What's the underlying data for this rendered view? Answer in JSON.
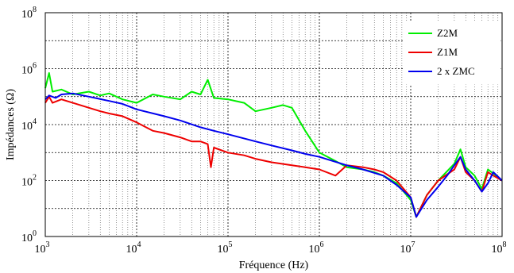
{
  "chart_data": {
    "type": "line",
    "title": "",
    "xlabel": "Fréquence (Hz)",
    "ylabel": "Impédances (Ω)",
    "x_scale": "log",
    "y_scale": "log",
    "xlim": [
      1000,
      100000000
    ],
    "ylim": [
      1,
      100000000
    ],
    "grid": true,
    "legend_position": "top-right",
    "x_ticks": [
      {
        "base": "10",
        "exp": "3",
        "value": 1000
      },
      {
        "base": "10",
        "exp": "4",
        "value": 10000
      },
      {
        "base": "10",
        "exp": "5",
        "value": 100000
      },
      {
        "base": "10",
        "exp": "6",
        "value": 1000000
      },
      {
        "base": "10",
        "exp": "7",
        "value": 10000000
      },
      {
        "base": "10",
        "exp": "8",
        "value": 100000000
      }
    ],
    "y_ticks": [
      {
        "base": "10",
        "exp": "0",
        "value": 1
      },
      {
        "base": "10",
        "exp": "2",
        "value": 100
      },
      {
        "base": "10",
        "exp": "4",
        "value": 10000
      },
      {
        "base": "10",
        "exp": "6",
        "value": 1000000
      },
      {
        "base": "10",
        "exp": "8",
        "value": 100000000
      }
    ],
    "series": [
      {
        "name": "Z2M",
        "color": "#00ee00",
        "x": [
          1000,
          1100,
          1200,
          1500,
          2000,
          3000,
          4000,
          5000,
          7000,
          10000,
          15000,
          20000,
          30000,
          40000,
          50000,
          60000,
          70000,
          100000,
          150000,
          200000,
          300000,
          400000,
          500000,
          700000,
          1000000,
          1500000,
          2000000,
          3000000,
          4000000,
          5000000,
          7000000,
          10000000,
          11500000,
          15000000,
          20000000,
          30000000,
          35000000,
          40000000,
          50000000,
          60000000,
          70000000,
          80000000,
          100000000
        ],
        "y": [
          200000,
          700000,
          150000,
          180000,
          120000,
          150000,
          110000,
          130000,
          80000,
          60000,
          120000,
          100000,
          80000,
          150000,
          120000,
          400000,
          90000,
          80000,
          60000,
          30000,
          40000,
          50000,
          40000,
          6000,
          1000,
          500,
          300,
          250,
          200,
          150,
          80,
          20,
          5,
          30,
          100,
          400,
          1300,
          300,
          150,
          50,
          250,
          180,
          100
        ]
      },
      {
        "name": "Z1M",
        "color": "#ee0000",
        "x": [
          1000,
          1100,
          1200,
          1500,
          2000,
          3000,
          4000,
          5000,
          7000,
          10000,
          15000,
          20000,
          30000,
          40000,
          50000,
          60000,
          65000,
          70000,
          100000,
          150000,
          200000,
          300000,
          500000,
          700000,
          1000000,
          1500000,
          2000000,
          3000000,
          4000000,
          5000000,
          7000000,
          10000000,
          11500000,
          15000000,
          20000000,
          30000000,
          35000000,
          40000000,
          50000000,
          60000000,
          70000000,
          80000000,
          100000000
        ],
        "y": [
          60000,
          100000,
          60000,
          80000,
          60000,
          40000,
          30000,
          25000,
          20000,
          12000,
          6000,
          5000,
          3500,
          2500,
          2500,
          2000,
          300,
          1500,
          1000,
          800,
          600,
          450,
          350,
          300,
          250,
          150,
          350,
          300,
          250,
          200,
          100,
          25,
          5,
          30,
          100,
          250,
          700,
          200,
          100,
          40,
          200,
          150,
          100
        ]
      },
      {
        "name": "2 x ZMC",
        "color": "#0000ee",
        "x": [
          1000,
          1100,
          1300,
          1500,
          2000,
          3000,
          5000,
          7000,
          10000,
          20000,
          30000,
          50000,
          70000,
          100000,
          200000,
          300000,
          500000,
          700000,
          1000000,
          2000000,
          3000000,
          5000000,
          7000000,
          10000000,
          11500000,
          15000000,
          20000000,
          25000000,
          30000000,
          35000000,
          40000000,
          50000000,
          60000000,
          70000000,
          80000000,
          100000000
        ],
        "y": [
          80000,
          110000,
          90000,
          120000,
          130000,
          100000,
          70000,
          55000,
          35000,
          20000,
          14000,
          8000,
          6000,
          4500,
          2500,
          1800,
          1200,
          900,
          700,
          350,
          250,
          150,
          70,
          25,
          5,
          20,
          60,
          150,
          350,
          700,
          250,
          100,
          40,
          80,
          200,
          100
        ]
      }
    ]
  }
}
